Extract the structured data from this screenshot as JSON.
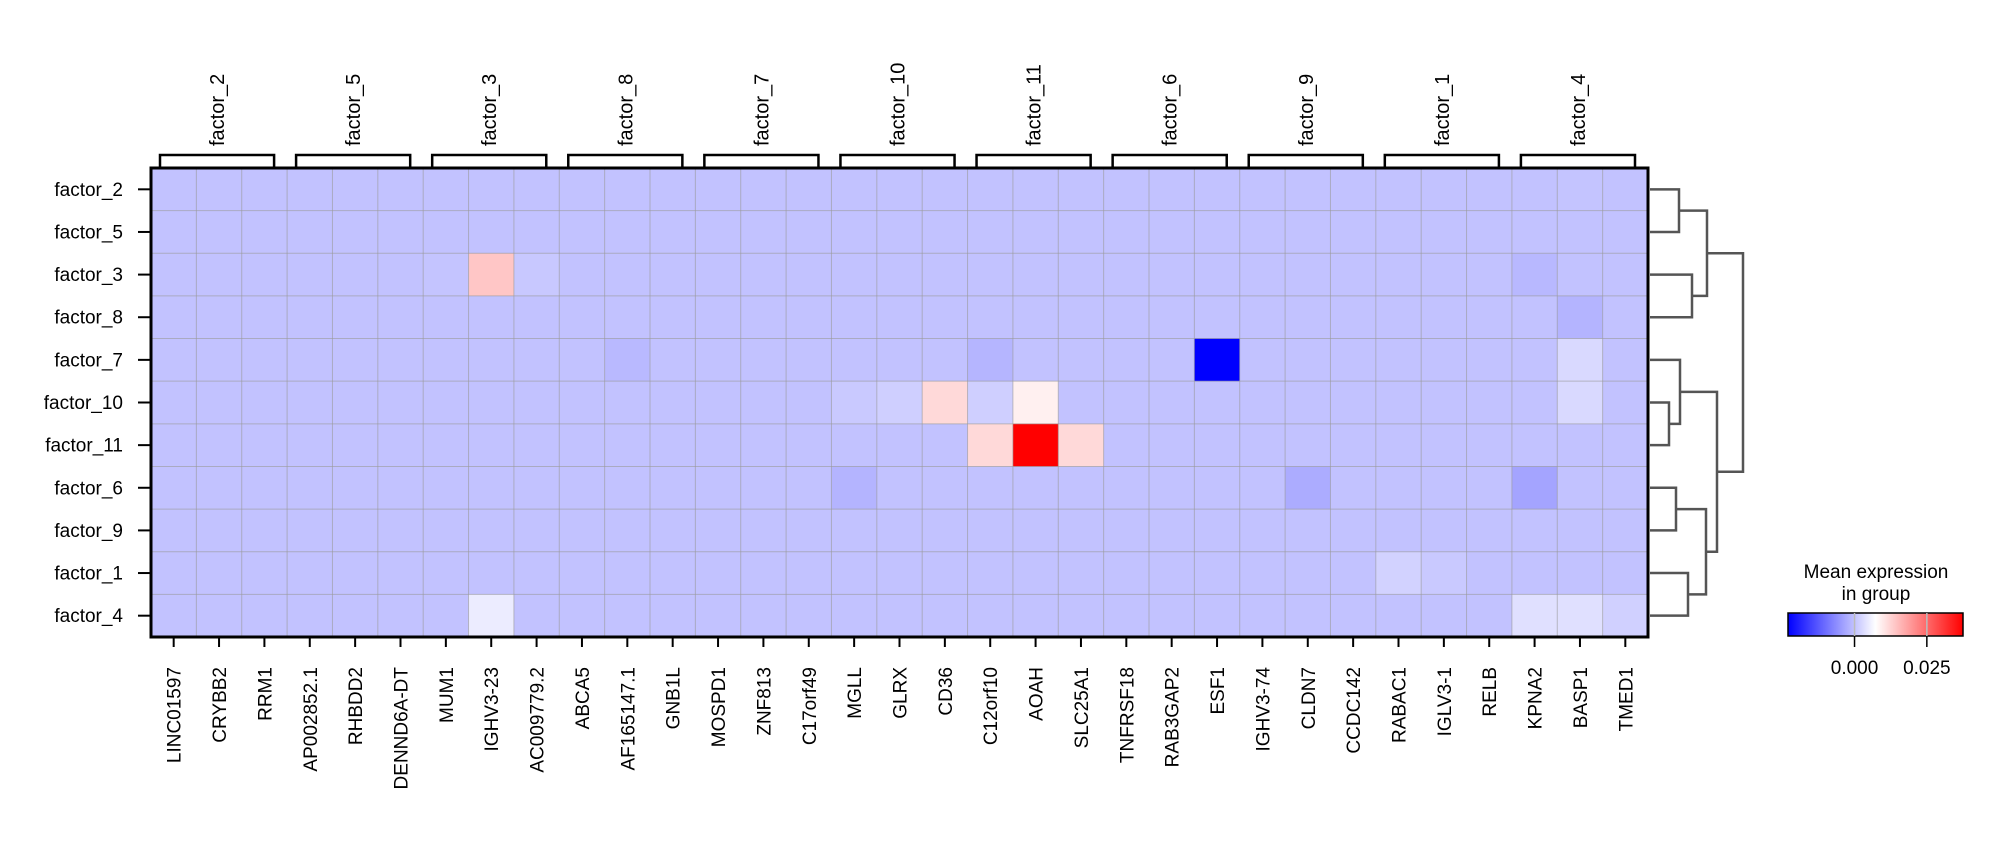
{
  "chart_data": {
    "type": "heatmap",
    "title": "",
    "colormap": "bwr",
    "vmin": -0.023,
    "vmax": 0.0375,
    "rows": [
      "factor_2",
      "factor_5",
      "factor_3",
      "factor_8",
      "factor_7",
      "factor_10",
      "factor_11",
      "factor_6",
      "factor_9",
      "factor_1",
      "factor_4"
    ],
    "columns": [
      "LINC01597",
      "CRYBB2",
      "RRM1",
      "AP002852.1",
      "RHBDD2",
      "DENND6A-DT",
      "MUM1",
      "IGHV3-23",
      "AC009779.2",
      "ABCA5",
      "AF165147.1",
      "GNB1L",
      "MOSPD1",
      "ZNF813",
      "C17orf49",
      "MGLL",
      "GLRX",
      "CD36",
      "C12orf10",
      "AOAH",
      "SLC25A1",
      "TNFRSF18",
      "RAB3GAP2",
      "ESF1",
      "IGHV3-74",
      "CLDN7",
      "CCDC142",
      "RABAC1",
      "IGLV3-1",
      "RELB",
      "KPNA2",
      "BASP1",
      "TMED1"
    ],
    "column_groups": [
      {
        "label": "factor_2",
        "size": 3
      },
      {
        "label": "factor_5",
        "size": 3
      },
      {
        "label": "factor_3",
        "size": 3
      },
      {
        "label": "factor_8",
        "size": 3
      },
      {
        "label": "factor_7",
        "size": 3
      },
      {
        "label": "factor_10",
        "size": 3
      },
      {
        "label": "factor_11",
        "size": 3
      },
      {
        "label": "factor_6",
        "size": 3
      },
      {
        "label": "factor_9",
        "size": 3
      },
      {
        "label": "factor_1",
        "size": 3
      },
      {
        "label": "factor_4",
        "size": 3
      }
    ],
    "baseline_value": 0.0,
    "nonbaseline_cells": [
      {
        "row": "factor_2",
        "col": "BASP1",
        "value": 0.0003
      },
      {
        "row": "factor_3",
        "col": "MUM1",
        "value": 0.0003
      },
      {
        "row": "factor_3",
        "col": "IGHV3-23",
        "value": 0.014
      },
      {
        "row": "factor_3",
        "col": "AC009779.2",
        "value": 0.0007
      },
      {
        "row": "factor_3",
        "col": "KPNA2",
        "value": -0.0012
      },
      {
        "row": "factor_8",
        "col": "BASP1",
        "value": -0.0017
      },
      {
        "row": "factor_7",
        "col": "AF165147.1",
        "value": -0.001
      },
      {
        "row": "factor_7",
        "col": "C12orf10",
        "value": -0.0015
      },
      {
        "row": "factor_7",
        "col": "ESF1",
        "value": -0.023
      },
      {
        "row": "factor_7",
        "col": "BASP1",
        "value": 0.0027
      },
      {
        "row": "factor_10",
        "col": "MGLL",
        "value": 0.0008
      },
      {
        "row": "factor_10",
        "col": "GLRX",
        "value": 0.0016
      },
      {
        "row": "factor_10",
        "col": "CD36",
        "value": 0.0117
      },
      {
        "row": "factor_10",
        "col": "C12orf10",
        "value": 0.0016
      },
      {
        "row": "factor_10",
        "col": "AOAH",
        "value": 0.009
      },
      {
        "row": "factor_10",
        "col": "BASP1",
        "value": 0.0027
      },
      {
        "row": "factor_11",
        "col": "C12orf10",
        "value": 0.0117
      },
      {
        "row": "factor_11",
        "col": "AOAH",
        "value": 0.0375
      },
      {
        "row": "factor_11",
        "col": "SLC25A1",
        "value": 0.0117
      },
      {
        "row": "factor_6",
        "col": "MGLL",
        "value": -0.0017
      },
      {
        "row": "factor_6",
        "col": "CLDN7",
        "value": -0.0026
      },
      {
        "row": "factor_6",
        "col": "KPNA2",
        "value": -0.0035
      },
      {
        "row": "factor_1",
        "col": "RABAC1",
        "value": 0.0019
      },
      {
        "row": "factor_1",
        "col": "IGLV3-1",
        "value": 0.0008
      },
      {
        "row": "factor_4",
        "col": "IGHV3-23",
        "value": 0.005
      },
      {
        "row": "factor_4",
        "col": "KPNA2",
        "value": 0.0036
      },
      {
        "row": "factor_4",
        "col": "BASP1",
        "value": 0.0036
      },
      {
        "row": "factor_4",
        "col": "TMED1",
        "value": 0.0017
      }
    ],
    "dendrogram": {
      "merges": [
        {
          "a": "factor_2",
          "b": "factor_5",
          "height": 29,
          "id": "n1"
        },
        {
          "a": "factor_3",
          "b": "factor_8",
          "height": 42,
          "id": "n2"
        },
        {
          "a": "n1",
          "b": "n2",
          "height": 57,
          "id": "n3"
        },
        {
          "a": "factor_10",
          "b": "factor_11",
          "height": 19,
          "id": "n4"
        },
        {
          "a": "factor_7",
          "b": "n4",
          "height": 30,
          "id": "n5"
        },
        {
          "a": "factor_6",
          "b": "factor_9",
          "height": 26,
          "id": "n6"
        },
        {
          "a": "factor_1",
          "b": "factor_4",
          "height": 38,
          "id": "n7"
        },
        {
          "a": "n6",
          "b": "n7",
          "height": 56,
          "id": "n8"
        },
        {
          "a": "n5",
          "b": "n8",
          "height": 67,
          "id": "n9"
        },
        {
          "a": "n3",
          "b": "n9",
          "height": 93,
          "id": "n10"
        }
      ]
    },
    "colorbar": {
      "title_line1": "Mean expression",
      "title_line2": "in group",
      "ticks": [
        0.0,
        0.025
      ],
      "tick_labels": [
        "0.000",
        "0.025"
      ]
    },
    "grid": true,
    "legend_placement": "bottom-right"
  }
}
